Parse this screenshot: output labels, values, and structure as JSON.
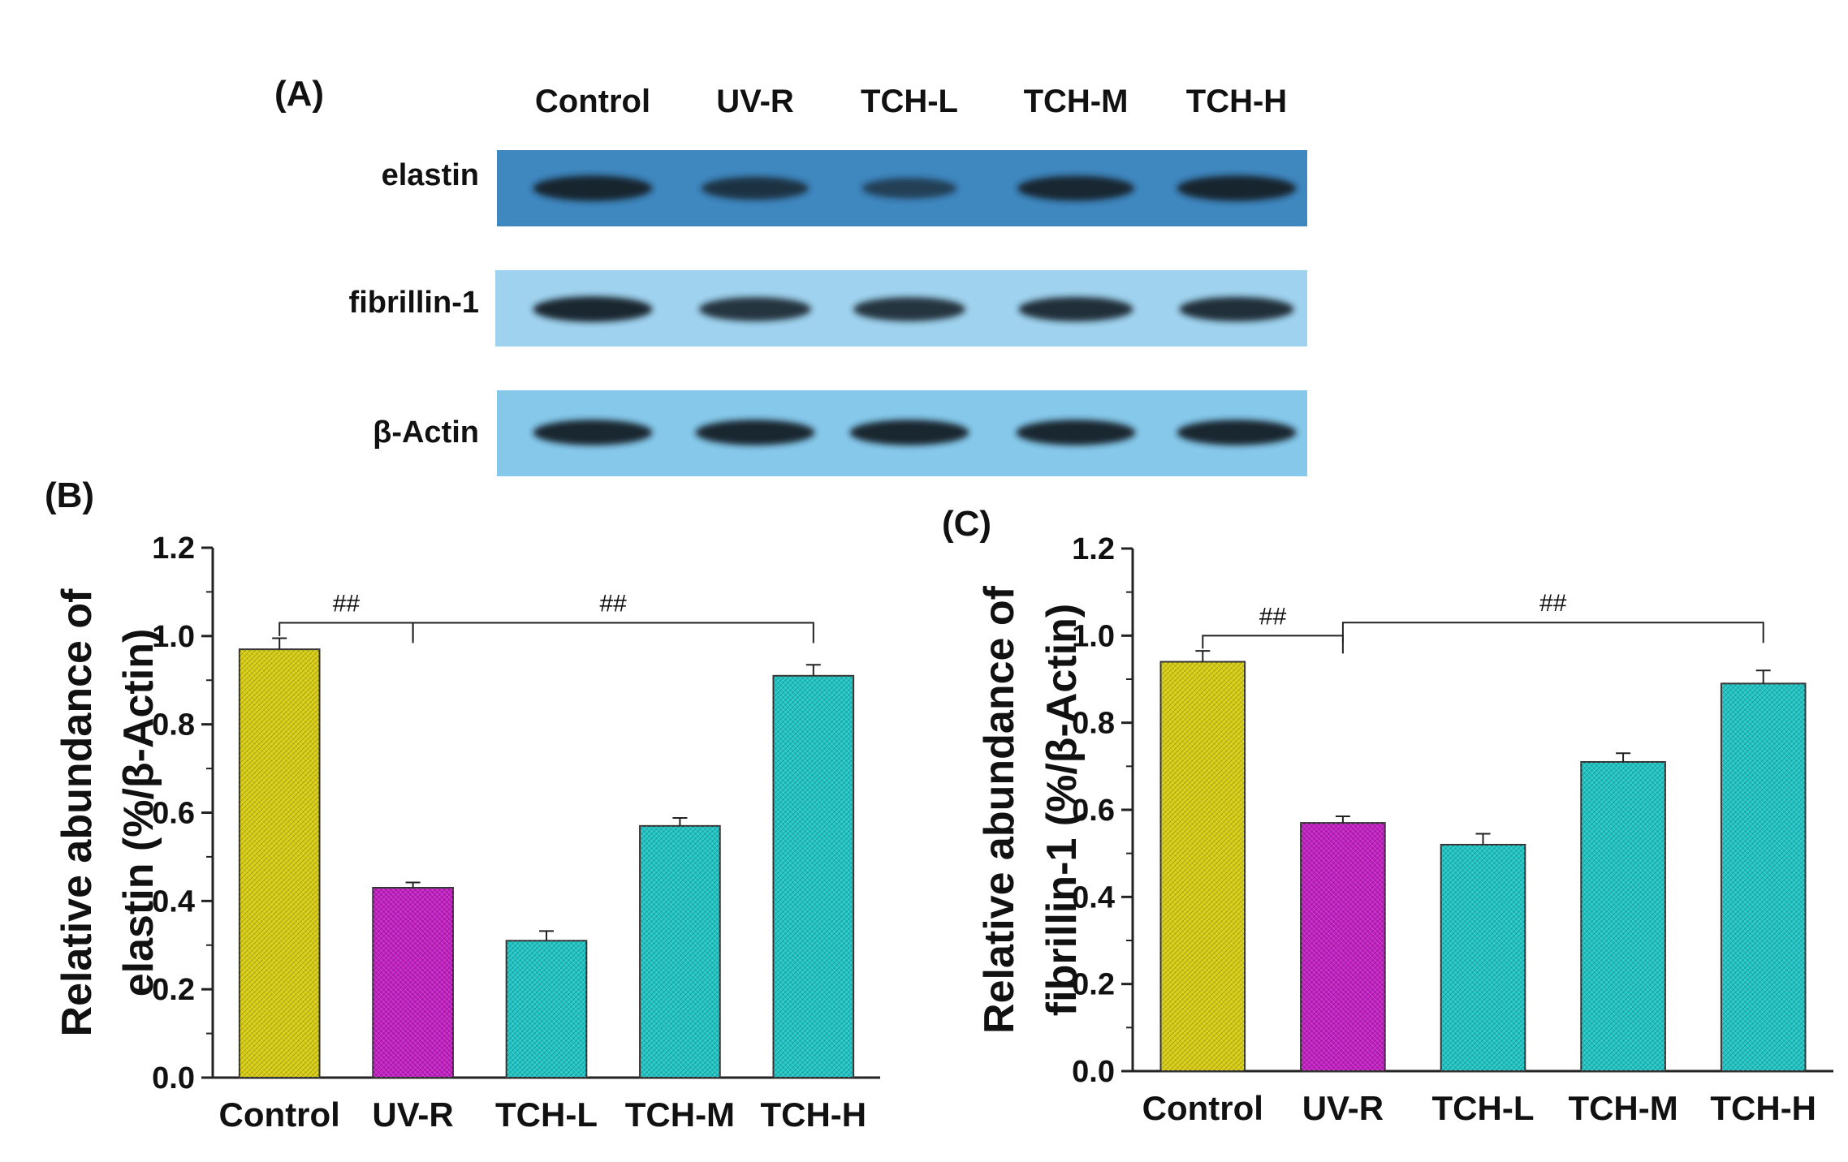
{
  "panel_a": {
    "label": "(A)",
    "lanes": [
      "Control",
      "UV-R",
      "TCH-L",
      "TCH-M",
      "TCH-H"
    ],
    "blots": [
      {
        "name": "elastin",
        "color": "#3f87bf",
        "band_intensity": [
          0.95,
          0.7,
          0.45,
          0.9,
          0.95
        ]
      },
      {
        "name": "fibrillin-1",
        "color": "#9fd2ee",
        "band_intensity": [
          0.95,
          0.8,
          0.8,
          0.85,
          0.85
        ]
      },
      {
        "name": "β-Actin",
        "color": "#86c8ea",
        "band_intensity": [
          0.95,
          0.95,
          0.95,
          0.95,
          0.95
        ]
      }
    ]
  },
  "chart_data": [
    {
      "panel": "(B)",
      "type": "bar",
      "categories": [
        "Control",
        "UV-R",
        "TCH-L",
        "TCH-M",
        "TCH-H"
      ],
      "values": [
        0.97,
        0.43,
        0.31,
        0.57,
        0.91
      ],
      "errors": [
        0.025,
        0.012,
        0.022,
        0.018,
        0.025
      ],
      "colors": [
        "#d6cc12",
        "#c21fc2",
        "#20c4c4",
        "#20c4c4",
        "#20c4c4"
      ],
      "ylabel_line1": "Relative abundance of",
      "ylabel_line2": "elastin (%/β-Actin)",
      "ylim": [
        0,
        1.2
      ],
      "yticks": [
        "0.0",
        "0.2",
        "0.4",
        "0.6",
        "0.8",
        "1.0",
        "1.2"
      ],
      "annotations": [
        {
          "text": "##",
          "from": 0,
          "to": 1
        },
        {
          "text": "##",
          "from": 1,
          "to": 4
        }
      ]
    },
    {
      "panel": "(C)",
      "type": "bar",
      "categories": [
        "Control",
        "UV-R",
        "TCH-L",
        "TCH-M",
        "TCH-H"
      ],
      "values": [
        0.94,
        0.57,
        0.52,
        0.71,
        0.89
      ],
      "errors": [
        0.025,
        0.015,
        0.025,
        0.02,
        0.03
      ],
      "colors": [
        "#d6cc12",
        "#c21fc2",
        "#20c4c4",
        "#20c4c4",
        "#20c4c4"
      ],
      "ylabel_line1": "Relative abundance of",
      "ylabel_line2": "fibrillin-1 (%/β-Actin)",
      "ylim": [
        0,
        1.2
      ],
      "yticks": [
        "0.0",
        "0.2",
        "0.4",
        "0.6",
        "0.8",
        "1.0",
        "1.2"
      ],
      "annotations": [
        {
          "text": "##",
          "from": 0,
          "to": 1
        },
        {
          "text": "##",
          "from": 1,
          "to": 4
        }
      ]
    }
  ]
}
